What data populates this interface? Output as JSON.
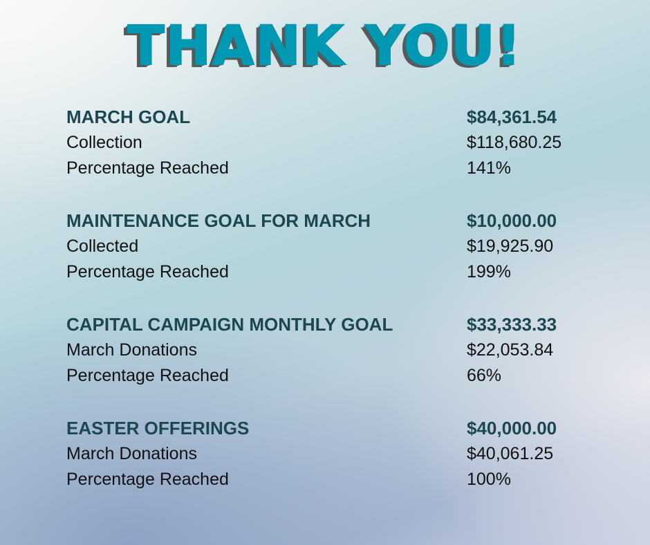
{
  "title": "THANK YOU!",
  "colors": {
    "title": "#0099b4",
    "title_shadow": "#555a5c",
    "heading": "#1b4850",
    "text": "#111111"
  },
  "sections": [
    {
      "heading": "MARCH GOAL",
      "goal": "$84,361.54",
      "rows": [
        {
          "label": "Collection",
          "value": "$118,680.25"
        },
        {
          "label": "Percentage Reached",
          "value": "141%"
        }
      ]
    },
    {
      "heading": "MAINTENANCE GOAL FOR MARCH",
      "goal": "$10,000.00",
      "rows": [
        {
          "label": "Collected",
          "value": "$19,925.90"
        },
        {
          "label": "Percentage Reached",
          "value": "199%"
        }
      ]
    },
    {
      "heading": "CAPITAL CAMPAIGN MONTHLY GOAL",
      "goal": "$33,333.33",
      "rows": [
        {
          "label": "March Donations",
          "value": "$22,053.84"
        },
        {
          "label": "Percentage Reached",
          "value": "66%"
        }
      ]
    },
    {
      "heading": "EASTER OFFERINGS",
      "goal": "$40,000.00",
      "rows": [
        {
          "label": "March Donations",
          "value": "$40,061.25"
        },
        {
          "label": "Percentage Reached",
          "value": "100%"
        }
      ]
    }
  ]
}
